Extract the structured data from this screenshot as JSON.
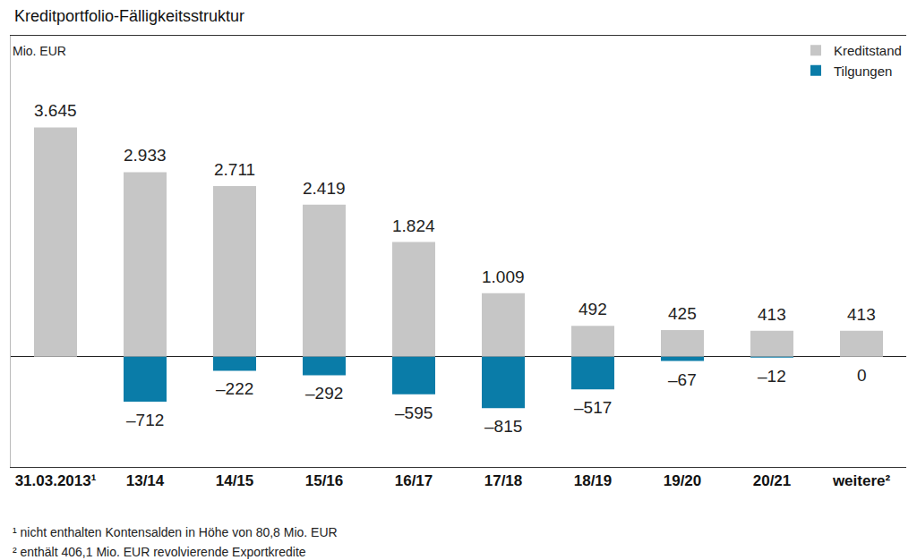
{
  "chart_data": {
    "type": "bar",
    "title": "Kreditportfolio-Fälligkeitsstruktur",
    "y_label": "Mio. EUR",
    "categories": [
      "31.03.2013¹",
      "13/14",
      "14/15",
      "15/16",
      "16/17",
      "17/18",
      "18/19",
      "19/20",
      "20/21",
      "weitere²"
    ],
    "series": [
      {
        "name": "Kreditstand",
        "color": "#c6c6c6",
        "values": [
          3645,
          2933,
          2711,
          2419,
          1824,
          1009,
          492,
          425,
          413,
          413
        ],
        "value_labels": [
          "3.645",
          "2.933",
          "2.711",
          "2.419",
          "1.824",
          "1.009",
          "492",
          "425",
          "413",
          "413"
        ]
      },
      {
        "name": "Tilgungen",
        "color": "#0a7ca8",
        "values": [
          null,
          -712,
          -222,
          -292,
          -595,
          -815,
          -517,
          -67,
          -12,
          0
        ],
        "value_labels": [
          null,
          "–712",
          "–222",
          "–292",
          "–595",
          "–815",
          "–517",
          "–67",
          "–12",
          "0"
        ]
      }
    ],
    "ylim": [
      -1750,
      5100
    ],
    "yticks": [
      0
    ],
    "tick_labels": "x",
    "data_labels": true,
    "legend": "top right",
    "footnotes": [
      "¹ nicht enthalten Kontensalden in Höhe von 80,8 Mio. EUR",
      "² enthält 406,1 Mio. EUR revolvierende Exportkredite"
    ]
  }
}
